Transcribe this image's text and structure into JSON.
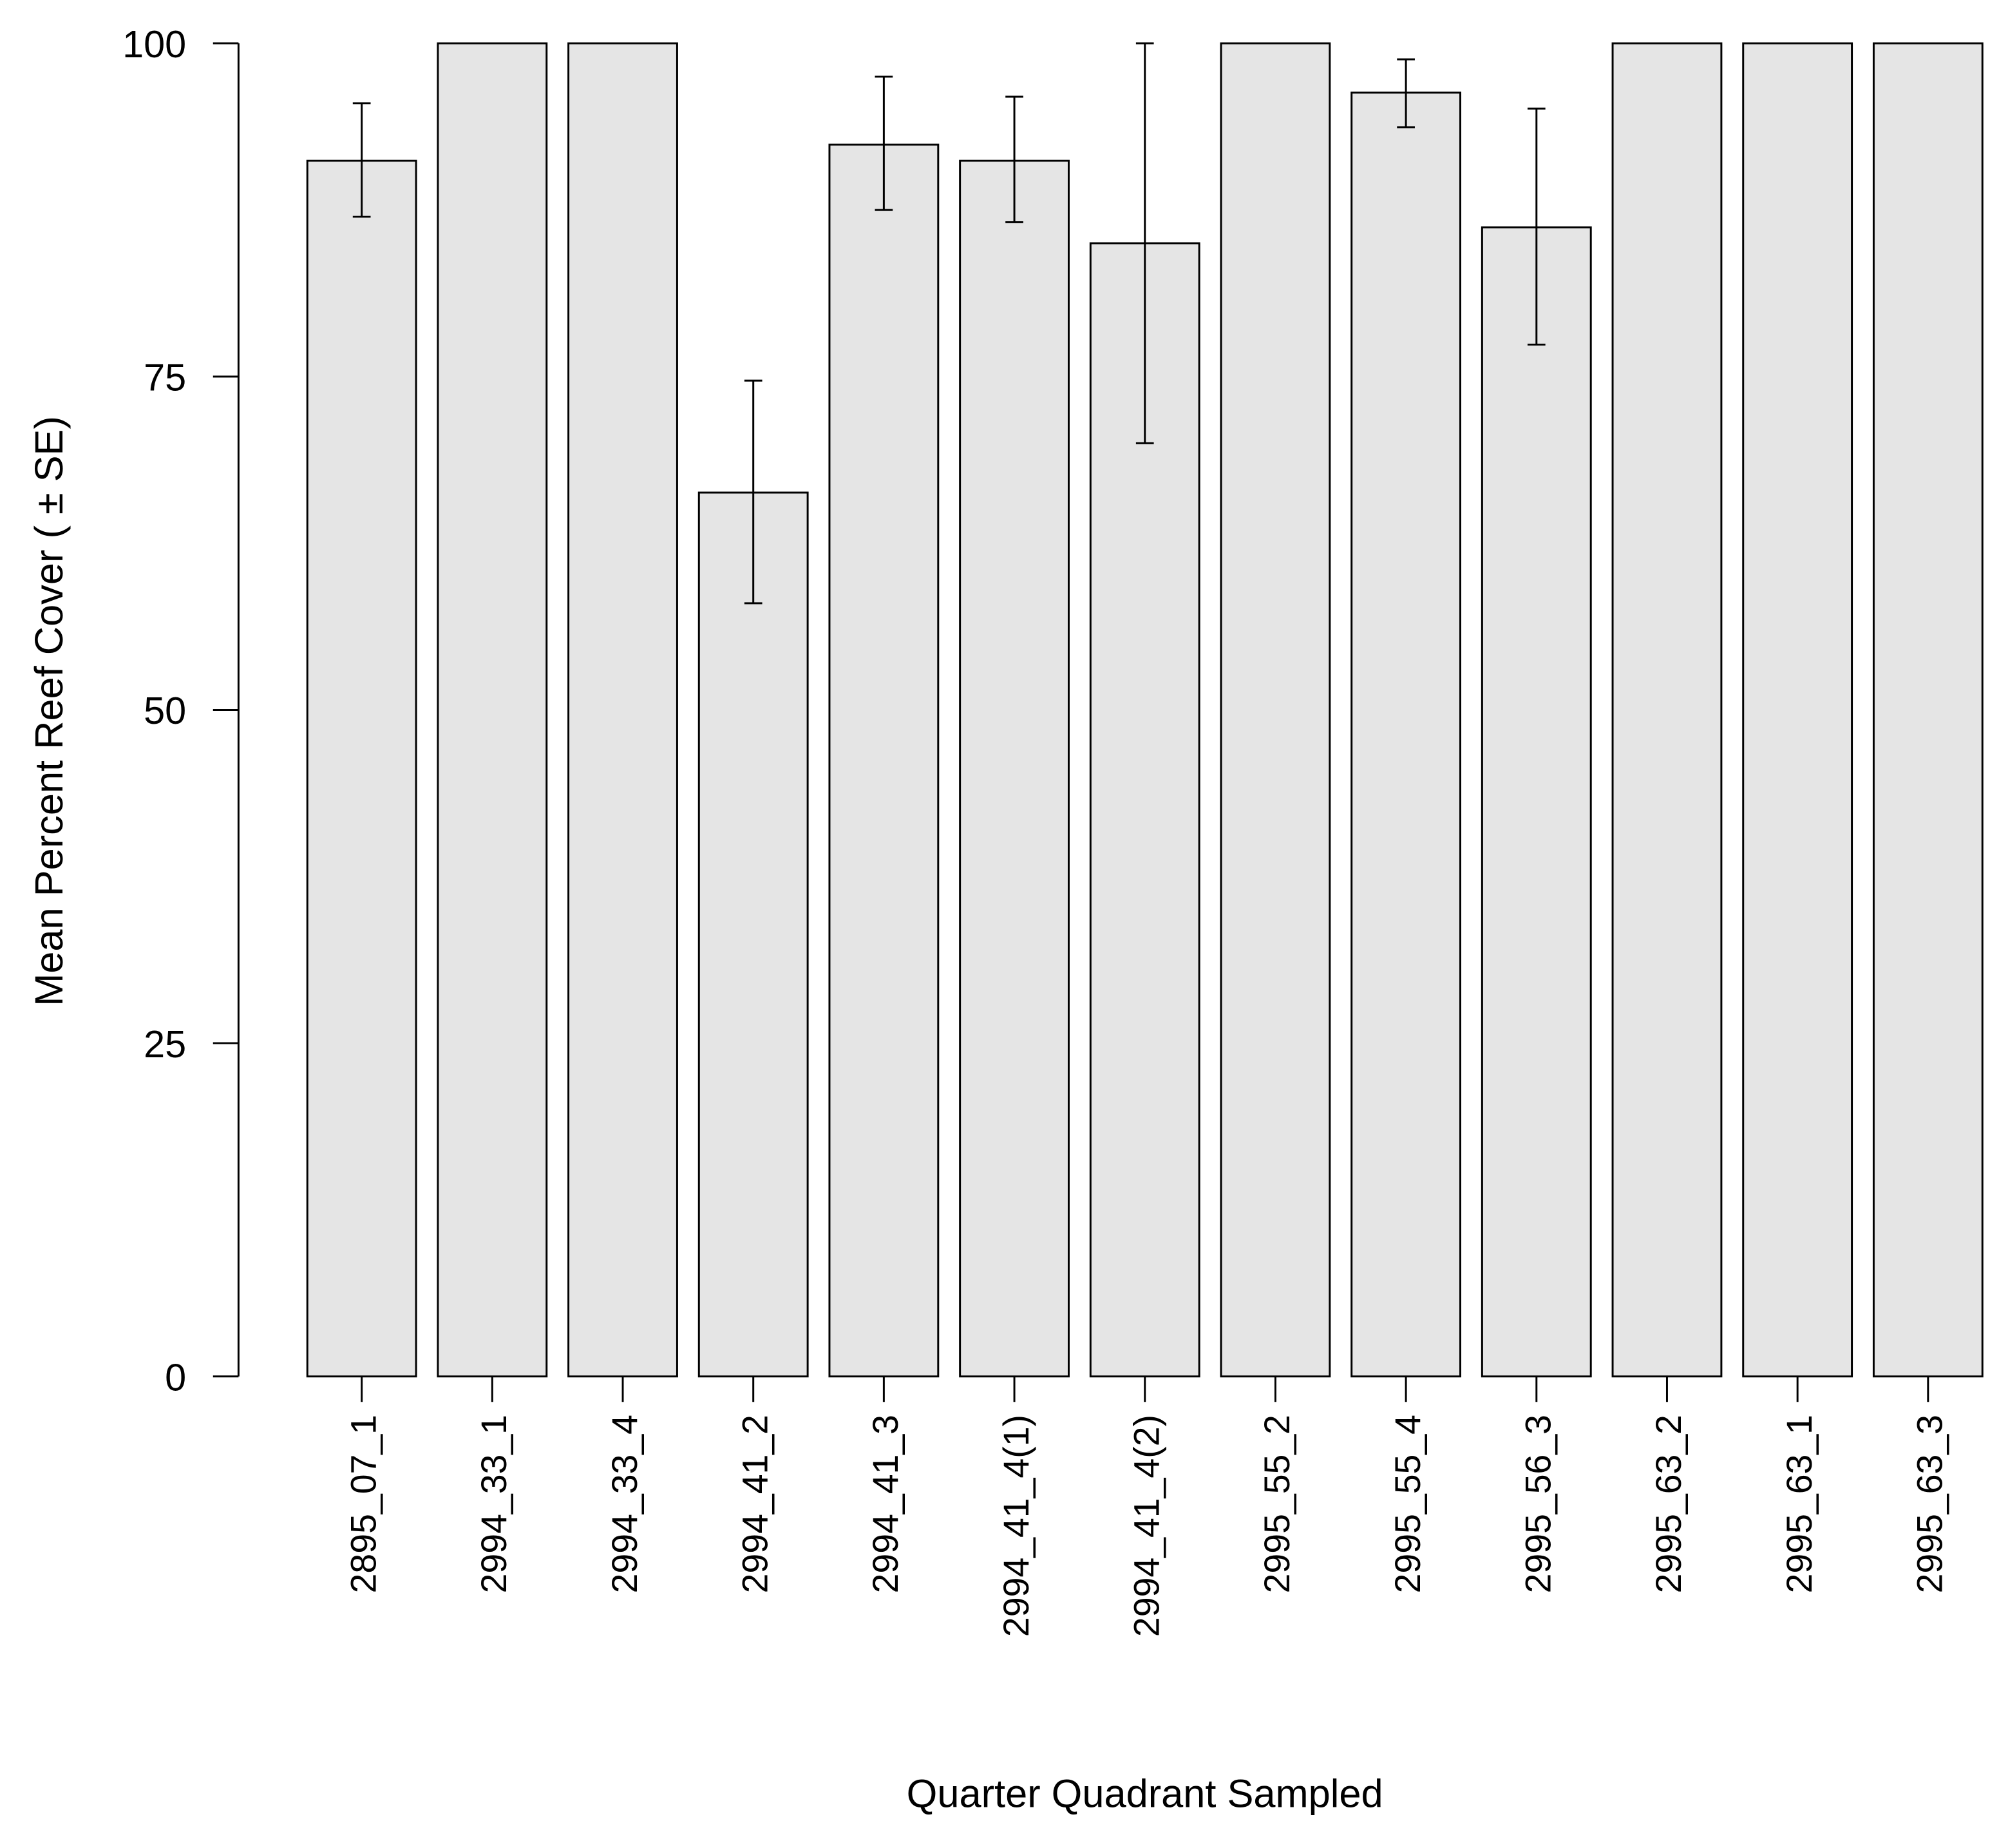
{
  "chart_data": {
    "type": "bar",
    "title": "",
    "xlabel": "Quarter Quadrant Sampled",
    "ylabel": "Mean Percent Reef Cover ( ± SE)",
    "ylim": [
      0,
      100
    ],
    "yticks": [
      "0",
      "25",
      "50",
      "75",
      "100"
    ],
    "grid": false,
    "bar_color": "#e5e5e5",
    "edge_color": "#000000",
    "categories": [
      "2895_07_1",
      "2994_33_1",
      "2994_33_4",
      "2994_41_2",
      "2994_41_3",
      "2994_41_4(1)",
      "2994_41_4(2)",
      "2995_55_2",
      "2995_55_4",
      "2995_56_3",
      "2995_63_2",
      "2995_63_1",
      "2995_63_3"
    ],
    "values": [
      91.2,
      100,
      100,
      66.3,
      92.4,
      91.2,
      85.0,
      100,
      96.3,
      86.2,
      100,
      100,
      100
    ],
    "error_lower": [
      87.0,
      null,
      null,
      58.0,
      87.5,
      86.6,
      70.0,
      null,
      93.7,
      77.4,
      null,
      null,
      null
    ],
    "error_upper": [
      95.5,
      null,
      null,
      74.7,
      97.5,
      96.0,
      100.0,
      null,
      98.8,
      95.1,
      null,
      null,
      null
    ]
  }
}
